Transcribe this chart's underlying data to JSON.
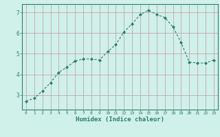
{
  "x": [
    0,
    1,
    2,
    3,
    4,
    5,
    6,
    7,
    8,
    9,
    10,
    11,
    12,
    13,
    14,
    15,
    16,
    17,
    18,
    19,
    20,
    21,
    22,
    23
  ],
  "y": [
    2.7,
    2.85,
    3.2,
    3.6,
    4.1,
    4.35,
    4.65,
    4.75,
    4.75,
    4.7,
    5.1,
    5.45,
    6.05,
    6.45,
    6.9,
    7.1,
    6.9,
    6.75,
    6.3,
    5.55,
    4.6,
    4.55,
    4.55,
    4.7
  ],
  "xlim": [
    -0.5,
    23.5
  ],
  "ylim": [
    2.3,
    7.4
  ],
  "yticks": [
    3,
    4,
    5,
    6,
    7
  ],
  "xticks": [
    0,
    1,
    2,
    3,
    4,
    5,
    6,
    7,
    8,
    9,
    10,
    11,
    12,
    13,
    14,
    15,
    16,
    17,
    18,
    19,
    20,
    21,
    22,
    23
  ],
  "xlabel": "Humidex (Indice chaleur)",
  "line_color": "#2e7d6e",
  "marker_color": "#2e7d6e",
  "bg_color": "#d0f0ea",
  "grid_color": "#c09898",
  "axis_color": "#2e7d6e",
  "tick_label_color": "#2e7d6e",
  "xlabel_color": "#2e7d6e"
}
